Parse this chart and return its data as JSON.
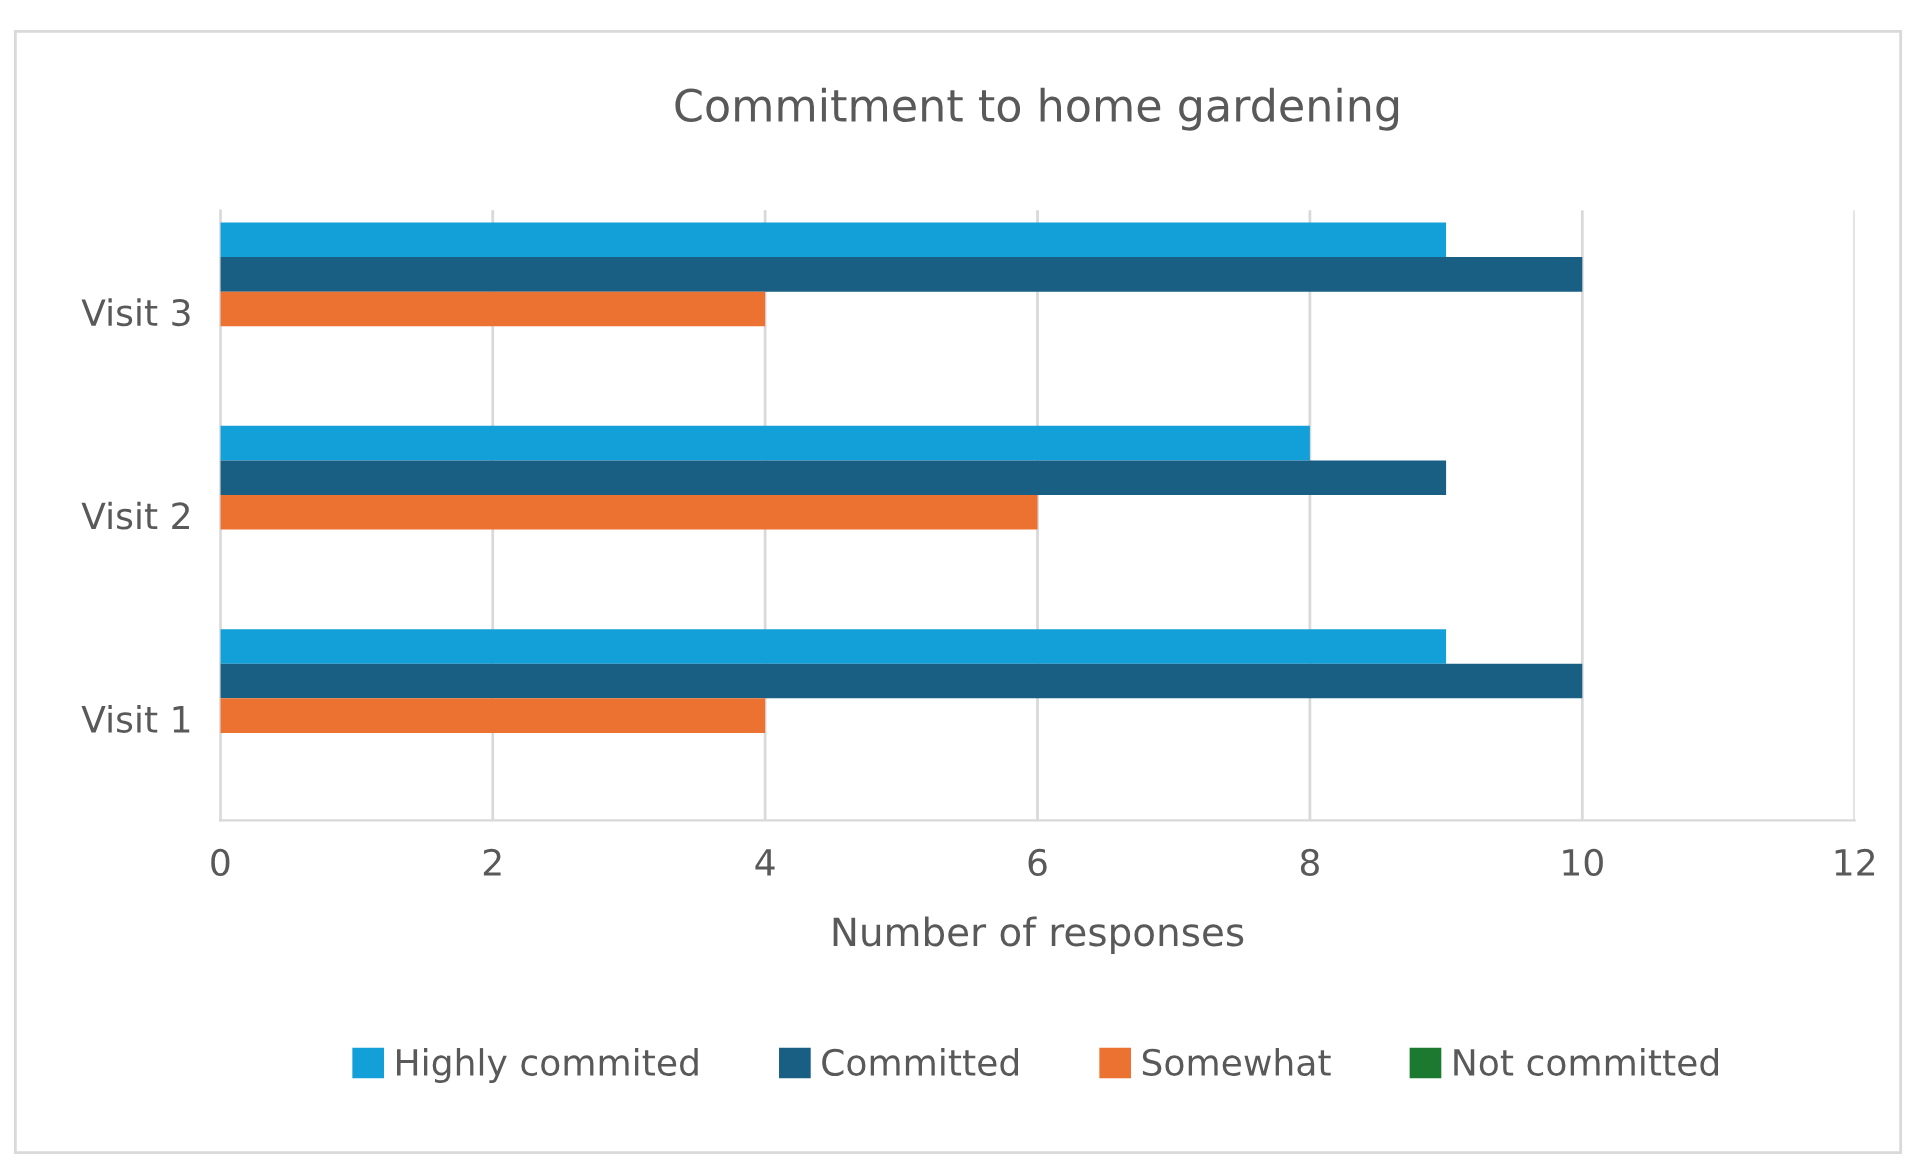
{
  "chart_data": {
    "type": "bar",
    "orientation": "horizontal",
    "title": "Commitment to home gardening",
    "xlabel": "Number of responses",
    "categories": [
      "Visit 3",
      "Visit 2",
      "Visit 1"
    ],
    "series": [
      {
        "name": "Highly commited",
        "color": "#139fd8",
        "values": [
          9,
          8,
          9
        ]
      },
      {
        "name": "Committed",
        "color": "#185f83",
        "values": [
          10,
          9,
          10
        ]
      },
      {
        "name": "Somewhat",
        "color": "#ec7232",
        "values": [
          4,
          6,
          4
        ]
      },
      {
        "name": "Not committed",
        "color": "#1b7a30",
        "values": [
          0,
          0,
          0
        ]
      }
    ],
    "xlim": [
      0,
      12
    ],
    "xticks": [
      0,
      2,
      4,
      6,
      8,
      10,
      12
    ],
    "grid": "x",
    "legend": "bottom"
  }
}
